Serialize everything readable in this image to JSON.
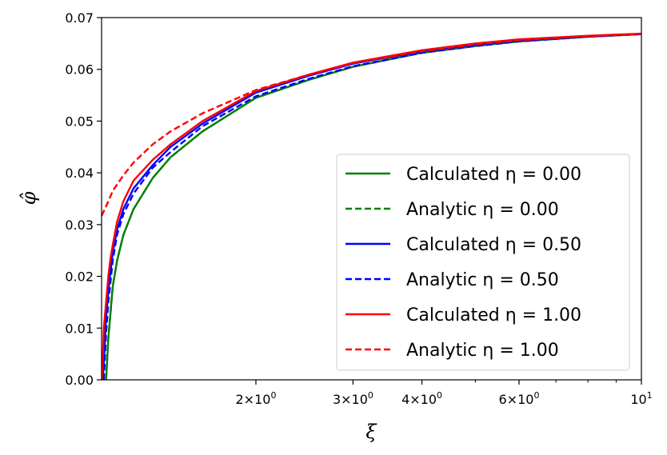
{
  "chart_data": {
    "type": "line",
    "title": "",
    "xlabel": "ξ",
    "ylabel": "φ̂",
    "xscale": "log",
    "xlim": [
      1.05,
      10
    ],
    "ylim": [
      0,
      0.07
    ],
    "grid": false,
    "legend_position": "lower-right",
    "yticks": [
      0.0,
      0.01,
      0.02,
      0.03,
      0.04,
      0.05,
      0.06,
      0.07
    ],
    "ytick_labels": [
      "0.00",
      "0.01",
      "0.02",
      "0.03",
      "0.04",
      "0.05",
      "0.06",
      "0.07"
    ],
    "xticks_major": [
      {
        "value": 2,
        "mantissa": "2",
        "exponent": "0"
      },
      {
        "value": 3,
        "mantissa": "3",
        "exponent": "0"
      },
      {
        "value": 4,
        "mantissa": "4",
        "exponent": "0"
      },
      {
        "value": 6,
        "mantissa": "6",
        "exponent": "0"
      },
      {
        "value": 10,
        "mantissa": "10",
        "exponent": "1"
      }
    ],
    "xticks_minor": [
      5,
      7,
      8,
      9
    ],
    "series": [
      {
        "name": "Calculated η = 0.00",
        "color": "#008000",
        "dash": "solid",
        "x": [
          1.07,
          1.08,
          1.09,
          1.1,
          1.12,
          1.15,
          1.2,
          1.3,
          1.4,
          1.6,
          2.0,
          2.5,
          3.0,
          4.0,
          5.0,
          6.0,
          8.0,
          10.0
        ],
        "y": [
          0.0,
          0.008,
          0.013,
          0.018,
          0.023,
          0.028,
          0.033,
          0.039,
          0.043,
          0.048,
          0.0545,
          0.058,
          0.0605,
          0.0632,
          0.0645,
          0.0654,
          0.0663,
          0.0668
        ]
      },
      {
        "name": "Analytic η = 0.00",
        "color": "#008000",
        "dash": "dashed",
        "x": [
          1.07,
          1.08,
          1.09,
          1.1,
          1.12,
          1.15,
          1.2,
          1.3,
          1.4,
          1.6,
          2.0,
          2.5,
          3.0,
          4.0,
          5.0,
          6.0,
          8.0,
          10.0
        ],
        "y": [
          0.0,
          0.008,
          0.013,
          0.018,
          0.023,
          0.028,
          0.033,
          0.039,
          0.043,
          0.048,
          0.0545,
          0.058,
          0.0605,
          0.0632,
          0.0645,
          0.0654,
          0.0663,
          0.0668
        ]
      },
      {
        "name": "Calculated η = 0.50",
        "color": "#0000ff",
        "dash": "solid",
        "x": [
          1.056,
          1.07,
          1.08,
          1.09,
          1.1,
          1.12,
          1.15,
          1.2,
          1.3,
          1.4,
          1.6,
          2.0,
          2.5,
          3.0,
          4.0,
          5.0,
          6.0,
          8.0,
          10.0
        ],
        "y": [
          0.0,
          0.012,
          0.017,
          0.021,
          0.0245,
          0.029,
          0.033,
          0.037,
          0.0415,
          0.045,
          0.0495,
          0.0555,
          0.0588,
          0.0611,
          0.0635,
          0.0648,
          0.0656,
          0.0664,
          0.0668
        ]
      },
      {
        "name": "Analytic η = 0.50",
        "color": "#0000ff",
        "dash": "dashed",
        "x": [
          1.06,
          1.07,
          1.08,
          1.09,
          1.1,
          1.12,
          1.15,
          1.2,
          1.3,
          1.4,
          1.6,
          2.0,
          2.5,
          3.0,
          4.0,
          5.0,
          6.0,
          8.0,
          10.0
        ],
        "y": [
          0.0,
          0.009,
          0.015,
          0.019,
          0.023,
          0.028,
          0.032,
          0.036,
          0.041,
          0.044,
          0.049,
          0.0548,
          0.0582,
          0.0606,
          0.0632,
          0.0645,
          0.0654,
          0.0663,
          0.0668
        ]
      },
      {
        "name": "Calculated η = 1.00",
        "color": "#ff0000",
        "dash": "solid",
        "x": [
          1.052,
          1.06,
          1.07,
          1.08,
          1.09,
          1.1,
          1.12,
          1.15,
          1.2,
          1.3,
          1.4,
          1.6,
          2.0,
          2.5,
          3.0,
          4.0,
          5.0,
          6.0,
          8.0,
          10.0
        ],
        "y": [
          0.0,
          0.01,
          0.015,
          0.02,
          0.0235,
          0.026,
          0.0305,
          0.0345,
          0.0385,
          0.0425,
          0.0455,
          0.05,
          0.0558,
          0.059,
          0.0613,
          0.0637,
          0.065,
          0.0658,
          0.0665,
          0.0669
        ]
      },
      {
        "name": "Analytic η = 1.00",
        "color": "#ff0000",
        "dash": "dashed",
        "x": [
          1.05,
          1.07,
          1.1,
          1.15,
          1.2,
          1.3,
          1.4,
          1.6,
          2.0,
          2.5,
          3.0,
          4.0,
          5.0,
          6.0,
          8.0,
          10.0
        ],
        "y": [
          0.0317,
          0.0335,
          0.0365,
          0.0395,
          0.042,
          0.0455,
          0.048,
          0.0515,
          0.056,
          0.059,
          0.0612,
          0.0635,
          0.0648,
          0.0656,
          0.0664,
          0.0668
        ]
      }
    ]
  }
}
